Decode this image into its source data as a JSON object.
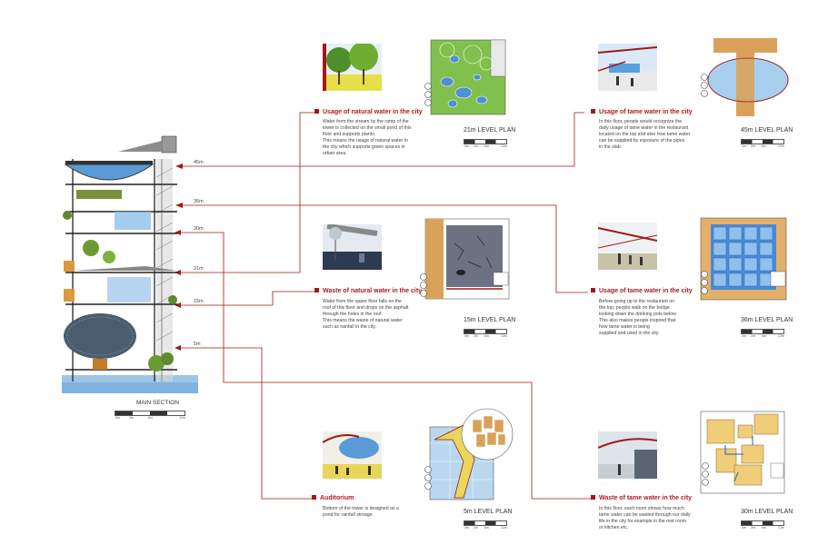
{
  "section": {
    "title": "MAIN SECTION",
    "scale_ticks": [
      "0m",
      "2m",
      "6m",
      "12m"
    ],
    "levels": [
      "45m",
      "36m",
      "30m",
      "21m",
      "15m",
      "5m"
    ]
  },
  "panels": [
    {
      "key": "p21",
      "title": "Usage of natural water in the city",
      "lines": [
        "Water from the stream by the ramp of the",
        "tower is collected on the small pond of this",
        "floor and supports plants.",
        "This means the usage of natural water in",
        "the city which supports green spaces in",
        "urban area."
      ],
      "plan": "21m LEVEL PLAN"
    },
    {
      "key": "p45",
      "title": "Usage of tame water in the city",
      "lines": [
        "In this floor, people would recognize the",
        "daily usage of tame water in the restaurant",
        "located on the top and also how tame water",
        "can be supplied by exposure of the pipes",
        "in the slab."
      ],
      "plan": "45m LEVEL PLAN"
    },
    {
      "key": "p15",
      "title": "Waste of natural water in the city",
      "lines": [
        "Water from the upper floor falls on the",
        "roof of this floor and drops on the asphalt",
        "through the holes in the roof.",
        "This means the waste of natural water",
        "such as rainfall in the city."
      ],
      "plan": "15m LEVEL PLAN"
    },
    {
      "key": "p36",
      "title": "Usage of tame water in the city",
      "lines": [
        "Before going up to the restaurant on",
        "the top, people walk on the bridge",
        "looking down the drinking pots below.",
        "This also makes people inspired that",
        "how tame water is being",
        "supplied and used in the city."
      ],
      "plan": "36m LEVEL PLAN"
    },
    {
      "key": "p5",
      "title": "Auditorium",
      "lines": [
        "Bottom of the tower is designed as a",
        "pond for rainfall stroage"
      ],
      "plan": "5m LEVEL PLAN"
    },
    {
      "key": "p30",
      "title": "Waste of tame water in the city",
      "lines": [
        "In this floor, each room shows how much",
        "tame water can be wasted through our daily",
        "life in the city for example in the rest room",
        "or kitchen etc."
      ],
      "plan": "30m LEVEL PLAN"
    }
  ],
  "plan_scale_ticks": [
    "0m",
    "2m",
    "6m",
    "12m"
  ],
  "colors": {
    "connector": "#a21818",
    "title": "#b01b1b",
    "water": "#5b9bd5",
    "wood": "#d9a25a",
    "grass": "#7ec04a"
  }
}
